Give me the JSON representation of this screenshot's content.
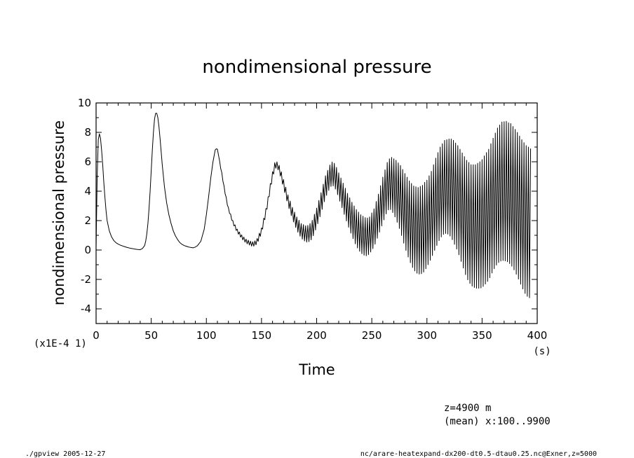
{
  "chart_data": {
    "type": "line",
    "title": "nondimensional pressure",
    "xlabel": "Time",
    "xunit": "(s)",
    "ylabel": "nondimensional pressure",
    "yscale_note": "(x1E-4 1)",
    "xlim": [
      0,
      400
    ],
    "ylim": [
      -5,
      10
    ],
    "x_ticks": [
      0,
      50,
      100,
      150,
      200,
      250,
      300,
      350,
      400
    ],
    "y_ticks": [
      -4,
      -2,
      0,
      2,
      4,
      6,
      8,
      10
    ],
    "grid": false,
    "series": [
      {
        "x": [
          0,
          1,
          2,
          3,
          4,
          5,
          6,
          7,
          8,
          9,
          10,
          12,
          14,
          16,
          18,
          20,
          22,
          25,
          28,
          31,
          34,
          37,
          40,
          42,
          44,
          45,
          46,
          47,
          48,
          49,
          50,
          51,
          52,
          53,
          54,
          55,
          56,
          57,
          58,
          59,
          60,
          62,
          64,
          66,
          68,
          70,
          72,
          74,
          76,
          78,
          80,
          84,
          88,
          90,
          92,
          95,
          98,
          100,
          102,
          104,
          106,
          108,
          109,
          110,
          111,
          112,
          114,
          116,
          118,
          120,
          124,
          128,
          132,
          136,
          140,
          142,
          144,
          146,
          150,
          154,
          156,
          158,
          160,
          162,
          163,
          165,
          167,
          170,
          174,
          178,
          182,
          186,
          190,
          192,
          194,
          196,
          200,
          204,
          208,
          212,
          214,
          216,
          218,
          220,
          224,
          228,
          232,
          236,
          240,
          244,
          246,
          248,
          252,
          256,
          260,
          264,
          266,
          268,
          270,
          272,
          276,
          280,
          284,
          288,
          292,
          296,
          298,
          300,
          304,
          308,
          312,
          316,
          320,
          322,
          324,
          328,
          332,
          336,
          340,
          344,
          348,
          350,
          352,
          356,
          360,
          364,
          368,
          372,
          374,
          376,
          378,
          382,
          386,
          390,
          394,
          398,
          400
        ],
        "mean": [
          0.2,
          5.0,
          7.5,
          7.9,
          7.6,
          6.8,
          5.8,
          4.6,
          3.6,
          2.7,
          2.0,
          1.3,
          0.9,
          0.65,
          0.5,
          0.4,
          0.33,
          0.25,
          0.18,
          0.12,
          0.08,
          0.04,
          0.02,
          0.1,
          0.3,
          0.6,
          1.1,
          1.8,
          2.8,
          4.0,
          5.4,
          6.8,
          8.0,
          8.9,
          9.3,
          9.3,
          9.0,
          8.4,
          7.6,
          6.7,
          5.8,
          4.3,
          3.2,
          2.4,
          1.8,
          1.3,
          0.95,
          0.7,
          0.5,
          0.38,
          0.3,
          0.2,
          0.15,
          0.2,
          0.3,
          0.6,
          1.4,
          2.4,
          3.6,
          4.9,
          6.0,
          6.8,
          6.9,
          6.8,
          6.5,
          6.0,
          5.2,
          4.3,
          3.5,
          2.8,
          1.9,
          1.3,
          0.9,
          0.6,
          0.45,
          0.4,
          0.45,
          0.6,
          1.3,
          2.6,
          3.4,
          4.3,
          5.1,
          5.7,
          5.8,
          5.7,
          5.3,
          4.5,
          3.4,
          2.5,
          1.8,
          1.3,
          1.1,
          1.1,
          1.2,
          1.4,
          2.2,
          3.2,
          4.3,
          5.0,
          5.2,
          5.1,
          4.8,
          4.4,
          3.6,
          2.8,
          2.1,
          1.5,
          1.1,
          0.9,
          0.9,
          1.0,
          1.5,
          2.4,
          3.4,
          4.3,
          4.5,
          4.5,
          4.3,
          4.1,
          3.5,
          2.7,
          2.0,
          1.5,
          1.3,
          1.4,
          1.6,
          1.8,
          2.4,
          3.2,
          3.9,
          4.3,
          4.3,
          4.2,
          4.0,
          3.5,
          2.8,
          2.1,
          1.7,
          1.6,
          1.7,
          1.8,
          2.0,
          2.4,
          3.1,
          3.7,
          4.0,
          4.0,
          3.9,
          3.8,
          3.6,
          3.1,
          2.5,
          2.0,
          1.8,
          1.9,
          2.0
        ],
        "amp": [
          0,
          0,
          0,
          0,
          0,
          0,
          0,
          0,
          0,
          0,
          0,
          0,
          0,
          0,
          0,
          0,
          0,
          0,
          0,
          0,
          0,
          0,
          0,
          0,
          0,
          0,
          0,
          0,
          0,
          0,
          0,
          0,
          0,
          0,
          0,
          0,
          0,
          0,
          0,
          0,
          0,
          0,
          0,
          0,
          0,
          0,
          0,
          0,
          0,
          0,
          0,
          0,
          0,
          0,
          0,
          0,
          0,
          0,
          0,
          0,
          0,
          0,
          0.02,
          0.05,
          0.05,
          0.06,
          0.06,
          0.07,
          0.08,
          0.08,
          0.1,
          0.12,
          0.13,
          0.14,
          0.15,
          0.16,
          0.17,
          0.18,
          0.2,
          0.22,
          0.22,
          0.22,
          0.23,
          0.24,
          0.24,
          0.25,
          0.27,
          0.3,
          0.35,
          0.4,
          0.45,
          0.5,
          0.55,
          0.57,
          0.6,
          0.62,
          0.65,
          0.7,
          0.75,
          0.78,
          0.78,
          0.8,
          0.82,
          0.85,
          0.95,
          1.05,
          1.15,
          1.25,
          1.3,
          1.3,
          1.28,
          1.25,
          1.3,
          1.4,
          1.55,
          1.65,
          1.7,
          1.8,
          1.9,
          2.0,
          2.25,
          2.5,
          2.7,
          2.85,
          2.95,
          3.0,
          3.0,
          2.95,
          2.95,
          3.05,
          3.1,
          3.15,
          3.25,
          3.35,
          3.45,
          3.6,
          3.8,
          4.0,
          4.1,
          4.2,
          4.3,
          4.35,
          4.4,
          4.45,
          4.5,
          4.6,
          4.7,
          4.75,
          4.75,
          4.8,
          4.8,
          4.9,
          5.0,
          5.1,
          5.1
        ],
        "oscillation_period_s": 2.0
      }
    ]
  },
  "annotations": {
    "z_level": "z=4900  m",
    "mean_range": "(mean) x:100..9900",
    "footer_left": "./gpview  2005-12-27",
    "footer_right": "nc/arare-heatexpand-dx200-dt0.5-dtau0.25.nc@Exner,z=5000"
  },
  "colors": {
    "line": "#000000",
    "background": "#ffffff",
    "axis": "#000000"
  }
}
